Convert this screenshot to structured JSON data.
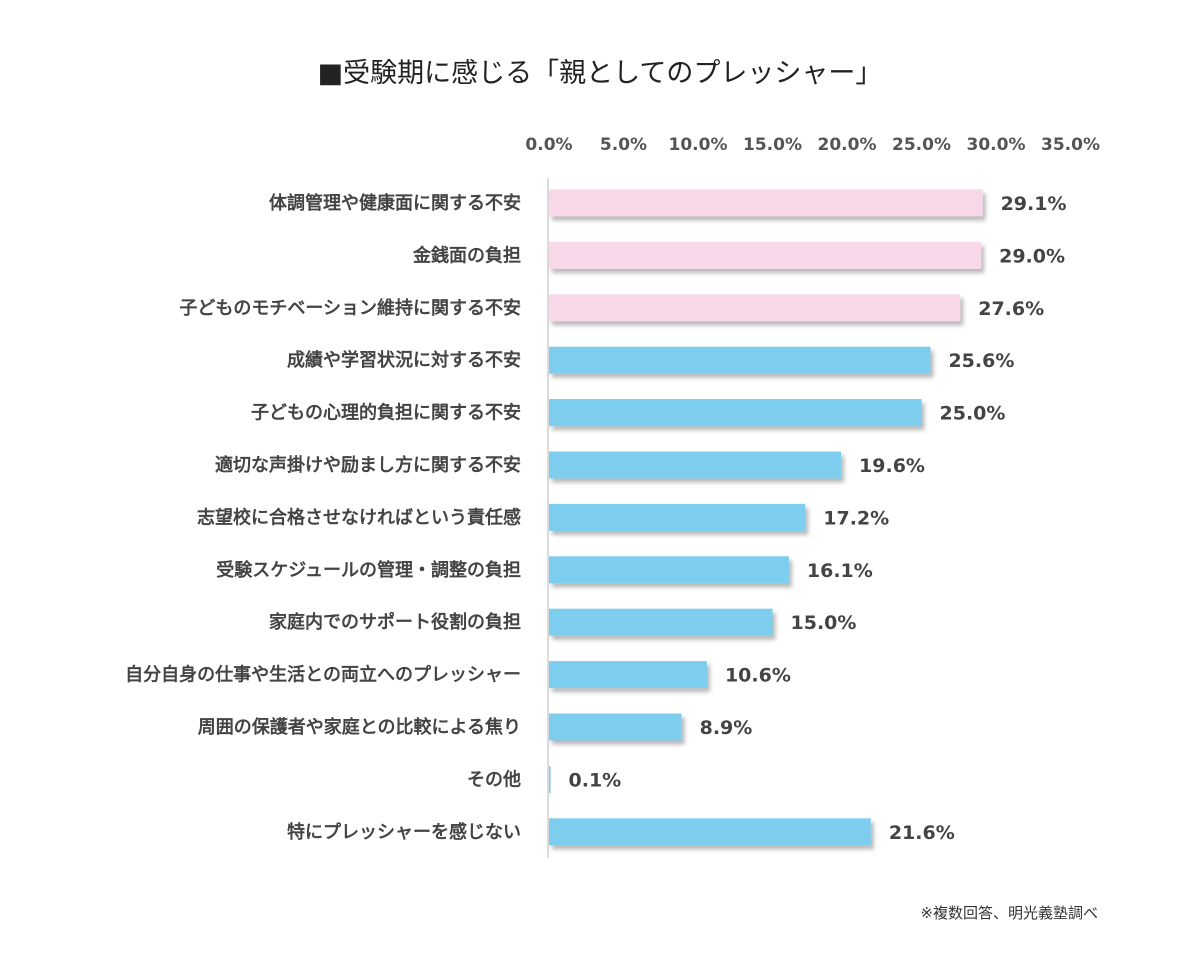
{
  "chart_data": {
    "type": "bar",
    "orientation": "horizontal",
    "title": "■受験期に感じる「親としてのプレッシャー」",
    "note": "※複数回答、明光義塾調べ",
    "xlim": [
      0,
      35
    ],
    "ticks": [
      "0.0%",
      "5.0%",
      "10.0%",
      "15.0%",
      "20.0%",
      "25.0%",
      "30.0%",
      "35.0%"
    ],
    "tick_values": [
      0,
      5,
      10,
      15,
      20,
      25,
      30,
      35
    ],
    "gridlines": false,
    "highlight_color": "#f7d7e8",
    "bar_color": "#7dcdee",
    "categories": [
      "体調管理や健康面に関する不安",
      "金銭面の負担",
      "子どものモチベーション維持に関する不安",
      "成績や学習状況に対する不安",
      "子どもの心理的負担に関する不安",
      "適切な声掛けや励まし方に関する不安",
      "志望校に合格させなければという責任感",
      "受験スケジュールの管理・調整の負担",
      "家庭内でのサポート役割の負担",
      "自分自身の仕事や生活との両立へのプレッシャー",
      "周囲の保護者や家庭との比較による焦り",
      "その他",
      "特にプレッシャーを感じない"
    ],
    "values": [
      29.1,
      29.0,
      27.6,
      25.6,
      25.0,
      19.6,
      17.2,
      16.1,
      15.0,
      10.6,
      8.9,
      0.1,
      21.6
    ],
    "value_labels": [
      "29.1%",
      "29.0%",
      "27.6%",
      "25.6%",
      "25.0%",
      "19.6%",
      "17.2%",
      "16.1%",
      "15.0%",
      "10.6%",
      "8.9%",
      "0.1%",
      "21.6%"
    ],
    "highlighted": [
      true,
      true,
      true,
      false,
      false,
      false,
      false,
      false,
      false,
      false,
      false,
      false,
      false
    ]
  }
}
